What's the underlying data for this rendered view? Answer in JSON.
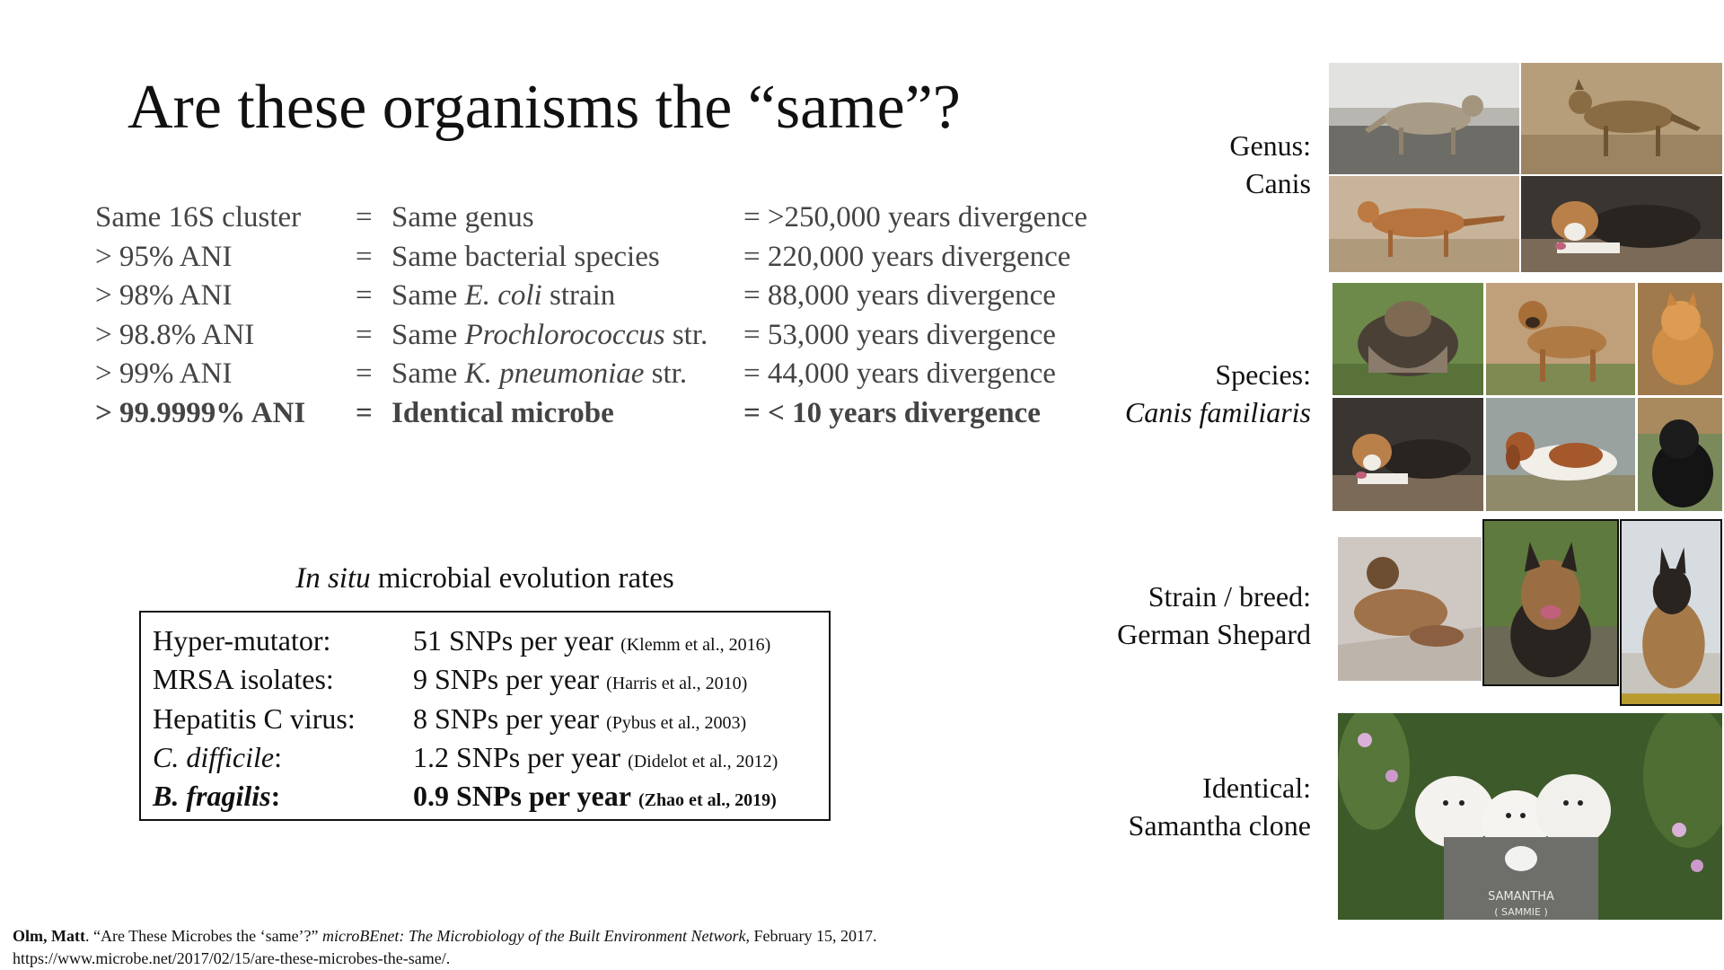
{
  "title": "Are these organisms the “same”?",
  "comparisons": [
    {
      "metric": "Same 16S cluster",
      "eq": "=",
      "level": "Same genus",
      "level_italic": "",
      "level_suffix": "",
      "divergence": "= >250,000 years divergence",
      "bold": false
    },
    {
      "metric": "> 95% ANI",
      "eq": "=",
      "level": "Same bacterial species",
      "level_italic": "",
      "level_suffix": "",
      "divergence": "= 220,000 years divergence",
      "bold": false
    },
    {
      "metric": "> 98% ANI",
      "eq": "=",
      "level": "Same ",
      "level_italic": "E. coli",
      "level_suffix": " strain",
      "divergence": "= 88,000 years divergence",
      "bold": false
    },
    {
      "metric": "> 98.8% ANI",
      "eq": "=",
      "level": "Same ",
      "level_italic": "Prochlorococcus",
      "level_suffix": " str.",
      "divergence": "= 53,000 years divergence",
      "bold": false
    },
    {
      "metric": "> 99% ANI",
      "eq": "=",
      "level": "Same ",
      "level_italic": "K. pneumoniae",
      "level_suffix": " str.",
      "divergence": "= 44,000 years divergence",
      "bold": false
    },
    {
      "metric": "> 99.9999% ANI",
      "eq": "=",
      "level": "Identical microbe",
      "level_italic": "",
      "level_suffix": "",
      "divergence": "= < 10 years divergence",
      "bold": true
    }
  ],
  "rates": {
    "caption_italic": "In situ",
    "caption_rest": " microbial evolution rates",
    "rows": [
      {
        "organism": "Hyper-mutator:",
        "organism_italic": "",
        "rate": "51 SNPs per year",
        "citation": "(Klemm et al., 2016)",
        "bold": false
      },
      {
        "organism": "MRSA isolates:",
        "organism_italic": "",
        "rate": "9 SNPs per year",
        "citation": "(Harris et al., 2010)",
        "bold": false
      },
      {
        "organism": "Hepatitis C virus:",
        "organism_italic": "",
        "rate": "8 SNPs per year",
        "citation": "(Pybus et al., 2003)",
        "bold": false
      },
      {
        "organism": ":",
        "organism_italic": "C. difficile",
        "rate": "1.2 SNPs per year",
        "citation": "(Didelot et al., 2012)",
        "bold": false
      },
      {
        "organism": ":",
        "organism_italic": "B. fragilis",
        "rate": "0.9 SNPs per year",
        "citation": "(Zhao et al., 2019)",
        "bold": true
      }
    ]
  },
  "groups": [
    {
      "line1": "Genus:",
      "line2": "Canis",
      "line2_italic": false
    },
    {
      "line1": "Species:",
      "line2": "Canis familiaris",
      "line2_italic": true
    },
    {
      "line1": "Strain / breed:",
      "line2": "German Shepard",
      "line2_italic": false
    },
    {
      "line1": "Identical:",
      "line2": "Samantha clone",
      "line2_italic": false
    }
  ],
  "tombstone": {
    "line1": "SAMANTHA",
    "line2": "( SAMMIE )"
  },
  "citation": {
    "author": "Olm, Matt",
    "text1": ". “Are These Microbes the ‘same’?” ",
    "journal": "microBEnet: The Microbiology of the Built Environment Network",
    "text2": ", February 15, 2017.",
    "url": "https://www.microbe.net/2017/02/15/are-these-microbes-the-same/."
  },
  "colors": {
    "text": "#111111",
    "table_text": "#444444",
    "box_border": "#111111"
  }
}
